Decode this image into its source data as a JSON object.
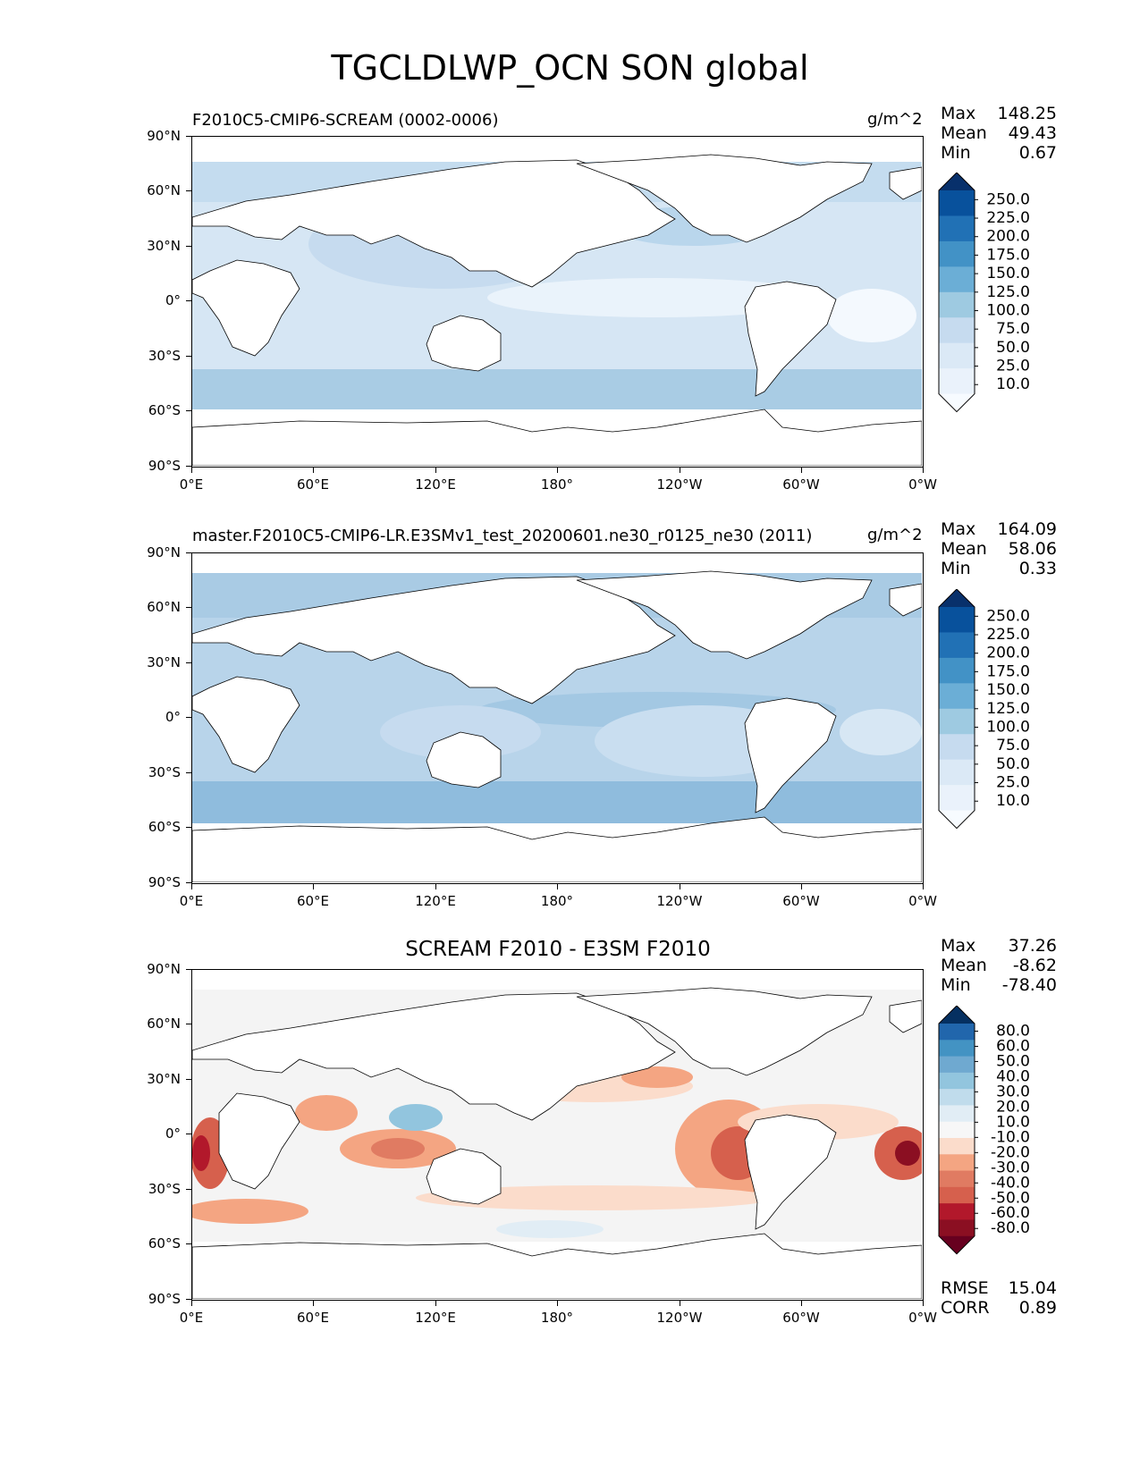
{
  "suptitle": "TGCLDLWP_OCN SON global",
  "y_ticks": [
    "90°N",
    "60°N",
    "30°N",
    "0°",
    "30°S",
    "60°S",
    "90°S"
  ],
  "x_ticks": [
    "0°E",
    "60°E",
    "120°E",
    "180°",
    "120°W",
    "60°W",
    "0°W"
  ],
  "panels": [
    {
      "left_title": "F2010C5-CMIP6-SCREAM (0002-0006)",
      "center_title": "",
      "units": "g/m^2",
      "stats": [
        {
          "k": "Max",
          "v": "148.25"
        },
        {
          "k": "Mean",
          "v": "49.43"
        },
        {
          "k": "Min",
          "v": "0.67"
        }
      ],
      "colorbar": {
        "labels": [
          "250.0",
          "225.0",
          "200.0",
          "175.0",
          "150.0",
          "125.0",
          "100.0",
          "75.0",
          "50.0",
          "25.0",
          "10.0"
        ],
        "colors": [
          "#08306b",
          "#08519c",
          "#2171b5",
          "#4292c6",
          "#6baed6",
          "#9ecae1",
          "#c6dbef",
          "#dbe9f6",
          "#eaf2fb",
          "#f7fbff"
        ]
      },
      "footer": []
    },
    {
      "left_title": "master.F2010C5-CMIP6-LR.E3SMv1_test_20200601.ne30_r0125_ne30 (2011)",
      "center_title": "",
      "units": "g/m^2",
      "stats": [
        {
          "k": "Max",
          "v": "164.09"
        },
        {
          "k": "Mean",
          "v": "58.06"
        },
        {
          "k": "Min",
          "v": "0.33"
        }
      ],
      "colorbar": {
        "labels": [
          "250.0",
          "225.0",
          "200.0",
          "175.0",
          "150.0",
          "125.0",
          "100.0",
          "75.0",
          "50.0",
          "25.0",
          "10.0"
        ],
        "colors": [
          "#08306b",
          "#08519c",
          "#2171b5",
          "#4292c6",
          "#6baed6",
          "#9ecae1",
          "#c6dbef",
          "#dbe9f6",
          "#eaf2fb",
          "#f7fbff"
        ]
      },
      "footer": []
    },
    {
      "left_title": "",
      "center_title": "SCREAM F2010 - E3SM F2010",
      "units": "",
      "stats": [
        {
          "k": "Max",
          "v": "37.26"
        },
        {
          "k": "Mean",
          "v": "-8.62"
        },
        {
          "k": "Min",
          "v": "-78.40"
        }
      ],
      "colorbar": {
        "labels": [
          "80.0",
          "60.0",
          "50.0",
          "40.0",
          "30.0",
          "20.0",
          "10.0",
          "-10.0",
          "-20.0",
          "-30.0",
          "-40.0",
          "-50.0",
          "-60.0",
          "-80.0"
        ],
        "colors": [
          "#053061",
          "#2166ac",
          "#4393c3",
          "#6fa9d0",
          "#92c5de",
          "#c0dcec",
          "#e1edf5",
          "#f7f7f7",
          "#fbdccb",
          "#f4a582",
          "#e07b62",
          "#d6604d",
          "#b2182b",
          "#8b0f22",
          "#67001f"
        ]
      },
      "footer": [
        {
          "k": "RMSE",
          "v": "15.04"
        },
        {
          "k": "CORR",
          "v": "0.89"
        }
      ]
    }
  ]
}
